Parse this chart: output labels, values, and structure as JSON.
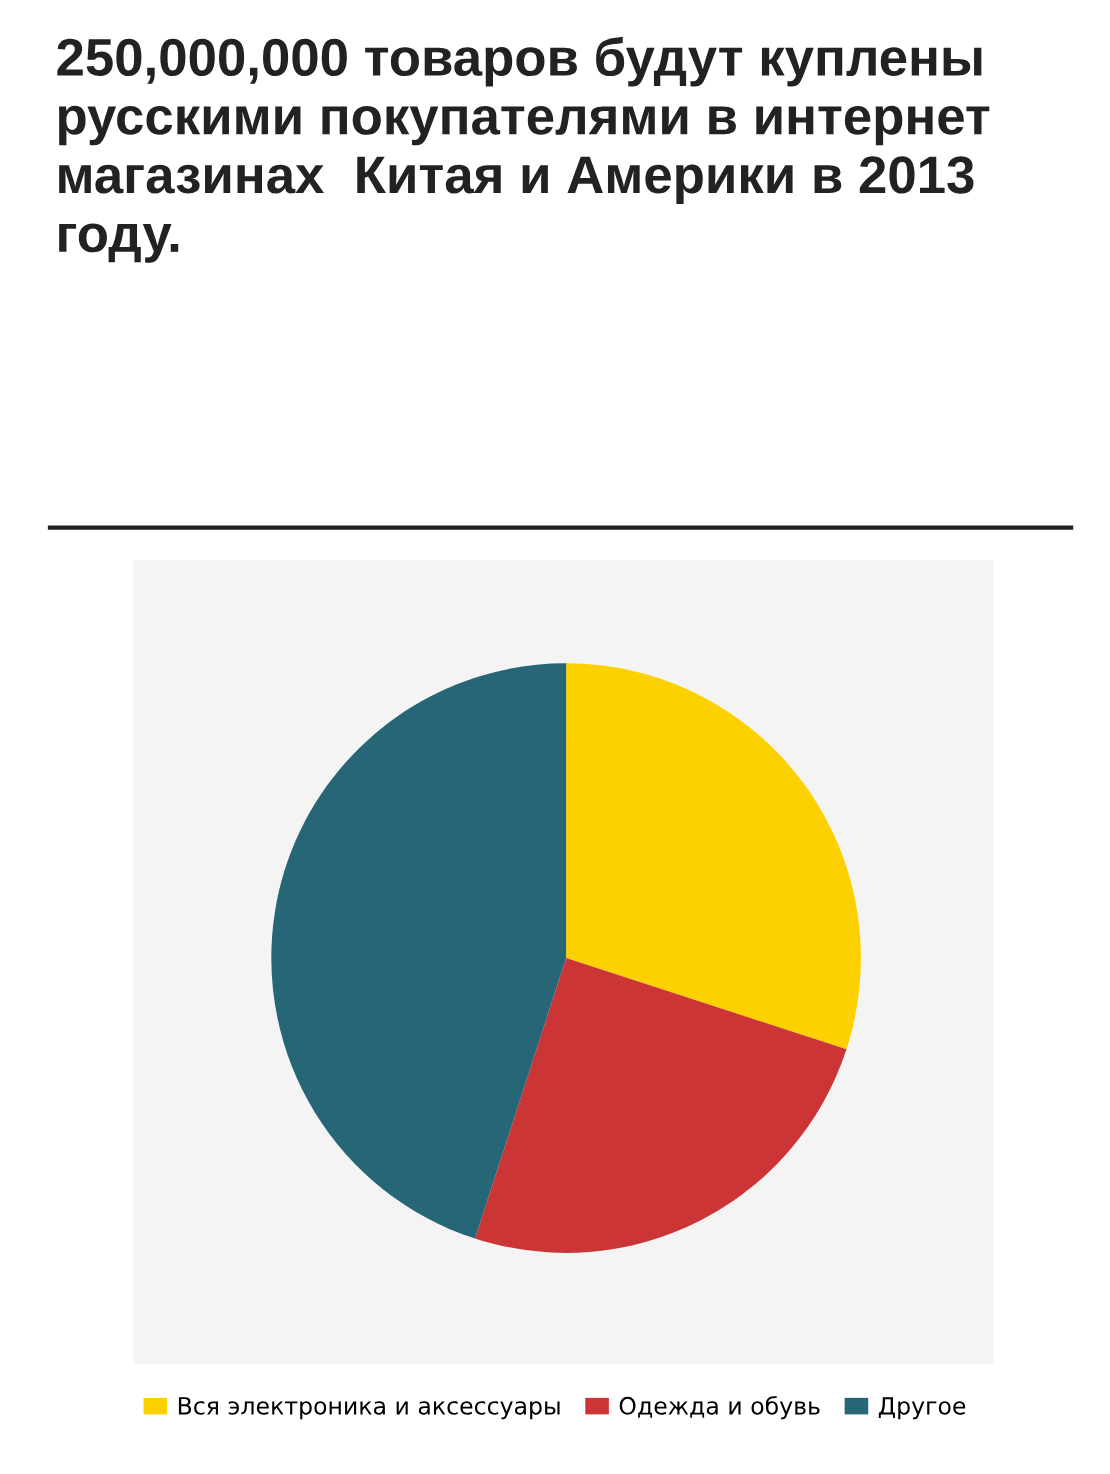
{
  "chart_data": {
    "type": "pie",
    "title": "250,000,000 товаров будут куплены русскими покупателями в интернет магазинах  Китая и Америки в 2013 году.",
    "categories": [
      "Вся электроника и аксессуары",
      "Одежда и обувь",
      "Другое"
    ],
    "values": [
      30,
      25,
      45
    ],
    "colors": [
      "#fdd000",
      "#cc3535",
      "#276676"
    ],
    "legend": "bottom"
  }
}
